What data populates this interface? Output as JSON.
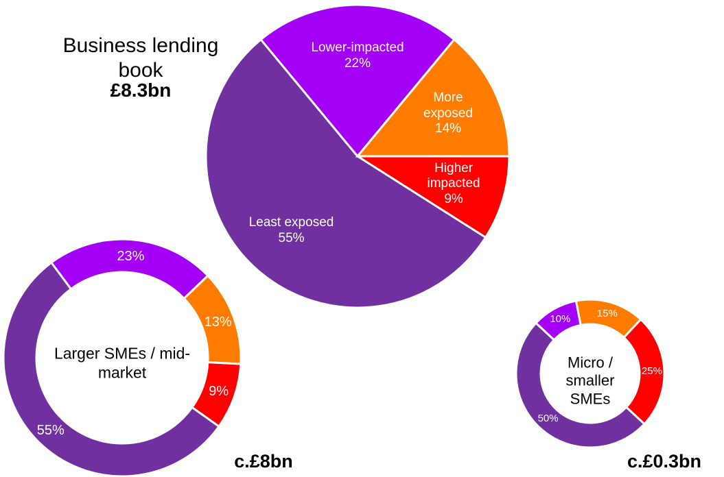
{
  "chart_data": [
    {
      "type": "pie",
      "title": "Business lending book",
      "total_label": "£8.3bn",
      "categories": [
        "Higher impacted",
        "Least exposed",
        "Lower-impacted",
        "More exposed"
      ],
      "values": [
        9,
        55,
        22,
        14
      ],
      "value_labels": [
        "9%",
        "55%",
        "22%",
        "14%"
      ],
      "colors": [
        "#ff0000",
        "#7030a0",
        "#a400f5",
        "#ff7c00"
      ]
    },
    {
      "type": "donut",
      "title": "Larger SMEs / mid-market",
      "total_label": "c.£8bn",
      "values": [
        9,
        55,
        23,
        13
      ],
      "value_labels": [
        "9%",
        "55%",
        "23%",
        "13%"
      ],
      "colors": [
        "#ff0000",
        "#7030a0",
        "#a400f5",
        "#ff7c00"
      ]
    },
    {
      "type": "donut",
      "title": "Micro / smaller SMEs",
      "total_label": "c.£0.3bn",
      "values": [
        25,
        50,
        10,
        15
      ],
      "value_labels": [
        "25%",
        "50%",
        "10%",
        "15%"
      ],
      "colors": [
        "#ff0000",
        "#7030a0",
        "#a400f5",
        "#ff7c00"
      ]
    }
  ]
}
